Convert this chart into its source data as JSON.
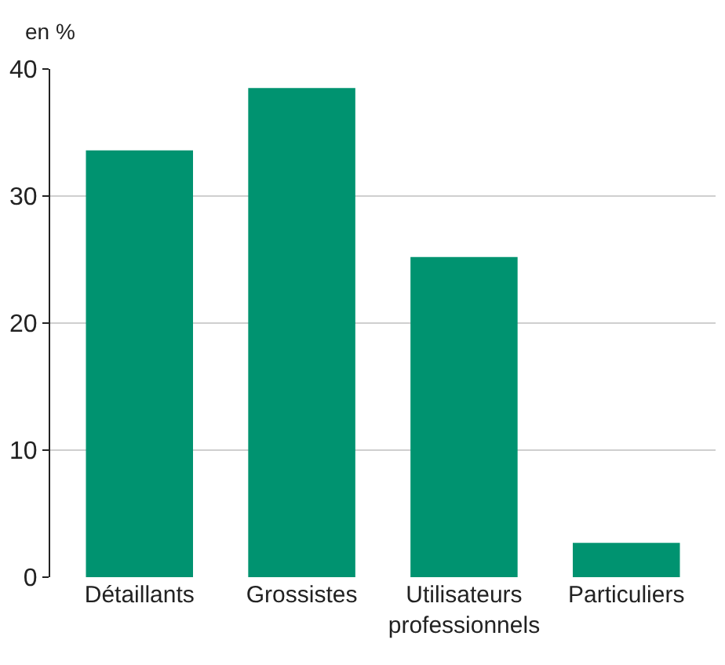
{
  "chart_data": {
    "type": "bar",
    "ylabel": "en %",
    "categories": [
      "Détaillants",
      "Grossistes",
      "Utilisateurs professionnels",
      "Particuliers"
    ],
    "values": [
      33.6,
      38.5,
      25.2,
      2.7
    ],
    "color": "#009370",
    "ylim": [
      0,
      40
    ],
    "yticks": [
      0,
      10,
      20,
      30,
      40
    ],
    "grid": "y"
  }
}
